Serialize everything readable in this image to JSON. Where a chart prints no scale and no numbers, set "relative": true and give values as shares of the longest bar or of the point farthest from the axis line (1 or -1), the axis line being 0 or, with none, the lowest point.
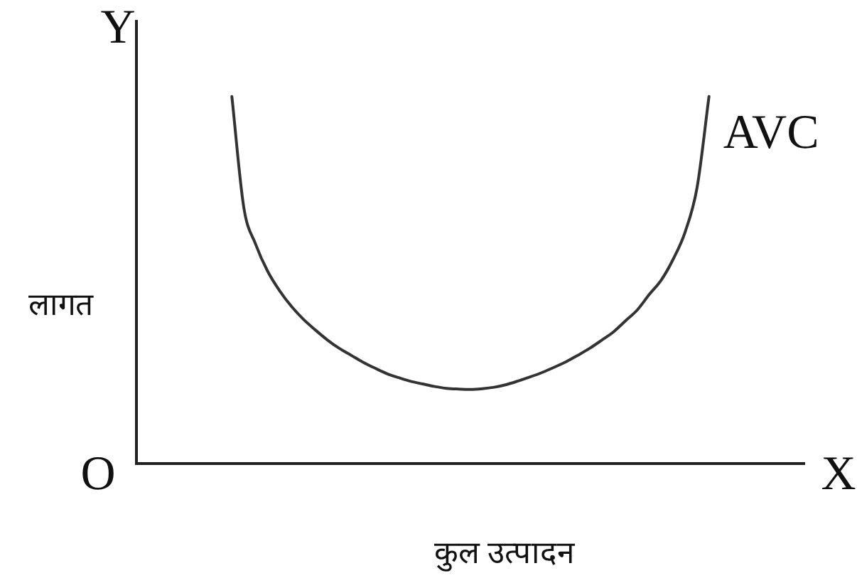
{
  "chart_data": {
    "type": "line",
    "relative": true,
    "xlabel": "कुल उत्पादन",
    "ylabel": "लागत",
    "annotations": [
      "Y",
      "X",
      "O"
    ],
    "marker": "none",
    "categories": [
      null,
      null,
      null,
      null,
      null,
      null,
      null,
      null,
      null,
      null,
      null,
      null,
      null,
      null,
      null,
      null,
      null,
      null,
      null,
      null,
      null,
      null,
      null,
      null,
      null,
      null,
      null,
      null,
      null,
      null,
      null,
      null,
      null,
      null,
      null,
      null,
      null,
      null,
      null,
      null,
      null,
      null,
      null,
      null,
      null,
      null,
      null,
      null,
      null,
      null,
      null,
      null,
      null,
      null,
      null,
      null,
      null
    ],
    "series": [
      {
        "name": "AVC",
        "color": "#333333",
        "values": [
          null,
          null,
          null,
          null,
          null,
          null,
          null,
          null,
          1.0,
          0.698,
          0.597,
          0.524,
          0.471,
          0.428,
          0.393,
          0.364,
          0.337,
          0.314,
          0.295,
          0.276,
          0.26,
          0.245,
          0.234,
          0.224,
          0.217,
          0.21,
          0.205,
          0.203,
          0.202,
          0.204,
          0.208,
          0.215,
          0.225,
          0.236,
          0.248,
          0.262,
          0.277,
          0.295,
          0.314,
          0.336,
          0.359,
          0.389,
          0.419,
          0.461,
          0.5,
          0.557,
          0.631,
          0.752,
          1.0,
          null,
          null,
          null,
          null,
          null,
          null,
          null,
          null
        ]
      }
    ]
  }
}
